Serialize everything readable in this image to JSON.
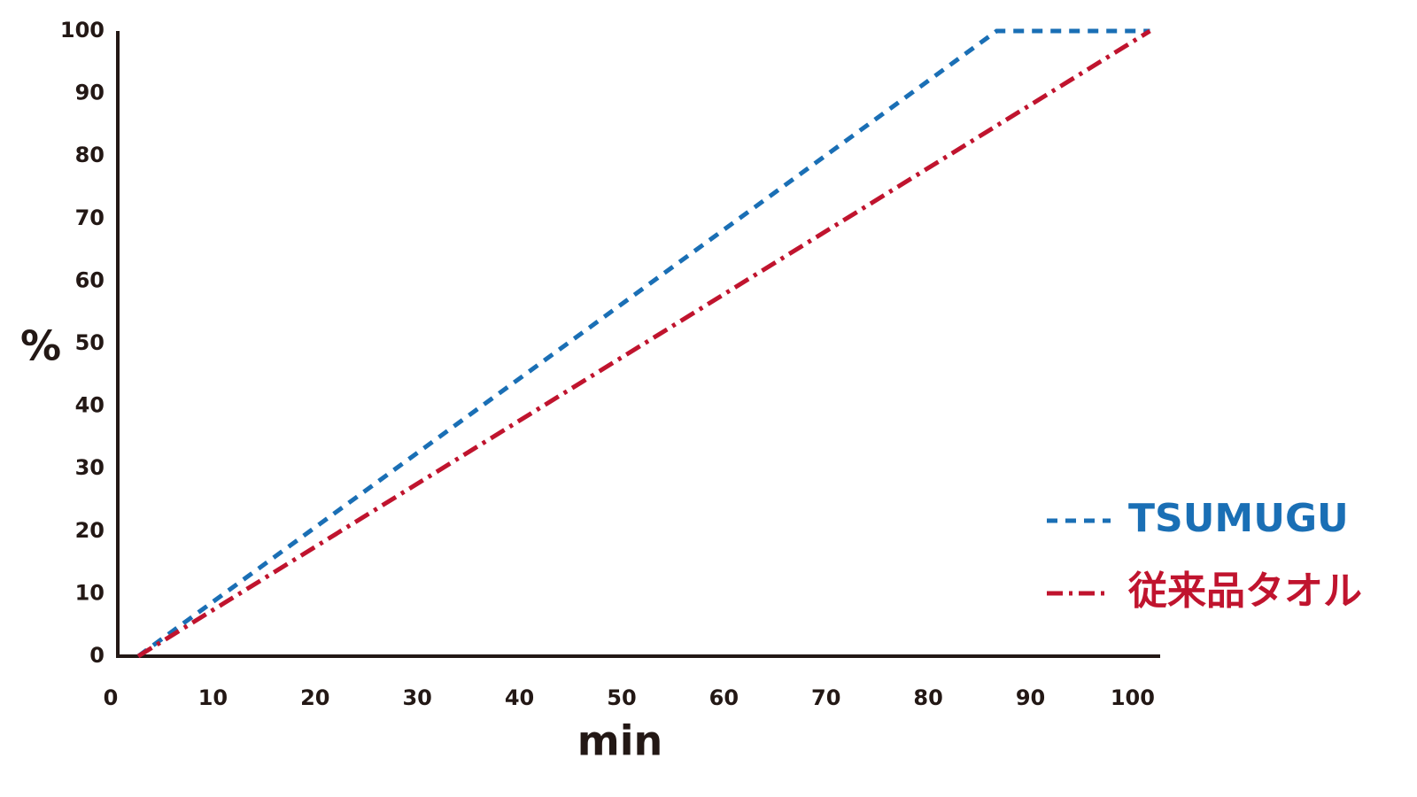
{
  "chart_data": {
    "type": "line",
    "x_label": "min",
    "y_label": "%",
    "xlim": [
      0,
      102
    ],
    "ylim": [
      0,
      100
    ],
    "xticks": [
      0,
      10,
      20,
      30,
      40,
      50,
      60,
      70,
      80,
      90,
      100
    ],
    "yticks": [
      0,
      10,
      20,
      30,
      40,
      50,
      60,
      70,
      80,
      90,
      100
    ],
    "grid": false,
    "legend": "lower right",
    "series": [
      {
        "name": "TSUMUGU",
        "color": "#1a6fb5",
        "dash": "dashed",
        "x": [
          2,
          86,
          101
        ],
        "values": [
          0,
          100,
          100
        ]
      },
      {
        "name": "従来品タオル",
        "color": "#c0142e",
        "dash": "dashdot",
        "x": [
          2,
          101
        ],
        "values": [
          0,
          100
        ]
      }
    ]
  }
}
